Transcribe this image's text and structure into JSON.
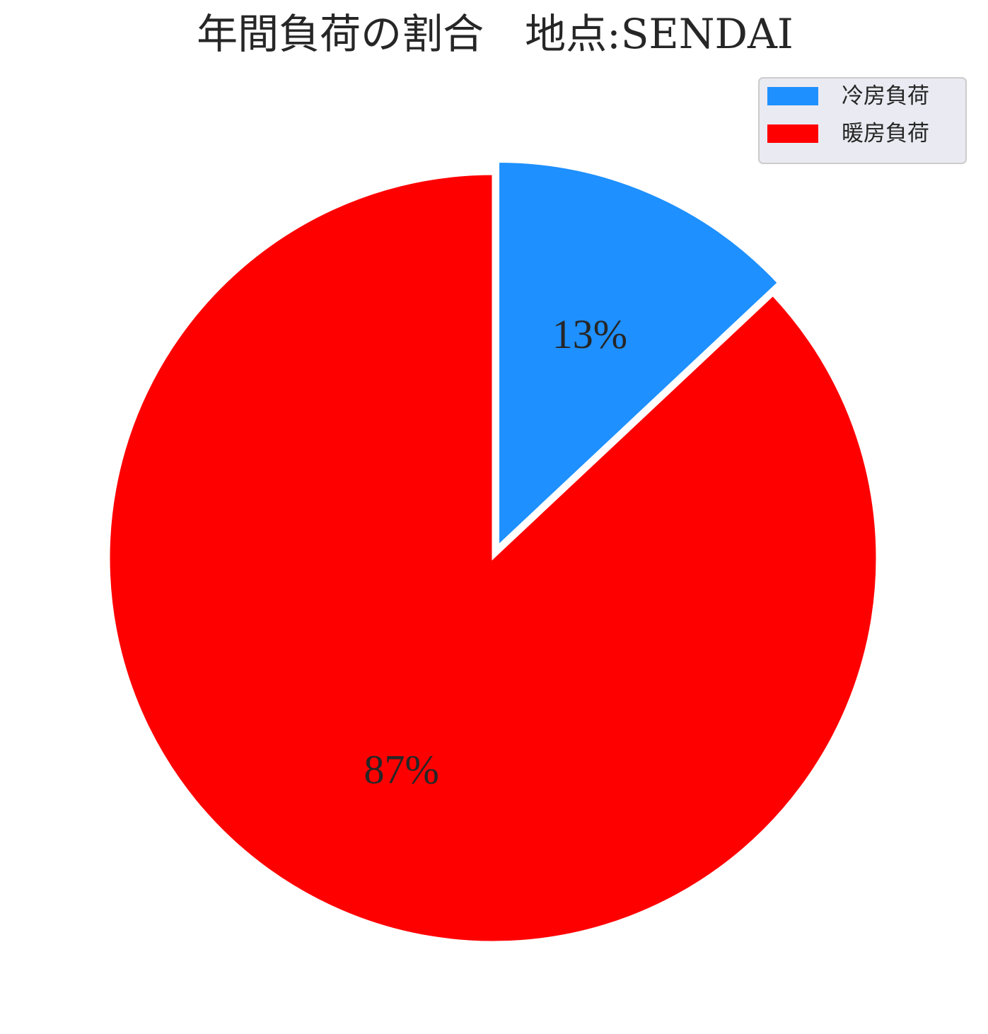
{
  "chart_data": {
    "type": "pie",
    "title": "年間負荷の割合　地点:SENDAI",
    "categories": [
      "冷房負荷",
      "暖房負荷"
    ],
    "values": [
      13,
      87
    ],
    "value_labels": [
      "13%",
      "87%"
    ],
    "colors": [
      "#1e90ff",
      "#ff0000"
    ],
    "exploded": [
      true,
      false
    ],
    "start_angle": "top, clockwise",
    "legend_position": "top-right"
  }
}
